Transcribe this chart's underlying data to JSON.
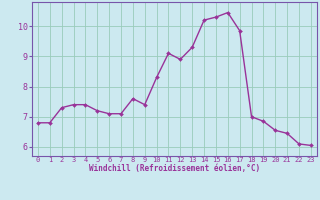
{
  "x": [
    0,
    1,
    2,
    3,
    4,
    5,
    6,
    7,
    8,
    9,
    10,
    11,
    12,
    13,
    14,
    15,
    16,
    17,
    18,
    19,
    20,
    21,
    22,
    23
  ],
  "y": [
    6.8,
    6.8,
    7.3,
    7.4,
    7.4,
    7.2,
    7.1,
    7.1,
    7.6,
    7.4,
    8.3,
    9.1,
    8.9,
    9.3,
    10.2,
    10.3,
    10.45,
    9.85,
    7.0,
    6.85,
    6.55,
    6.45,
    6.1,
    6.05
  ],
  "line_color": "#993399",
  "marker": "D",
  "markersize": 2.0,
  "linewidth": 1.0,
  "bg_color": "#cce9f0",
  "grid_color": "#99ccbb",
  "xlabel": "Windchill (Refroidissement éolien,°C)",
  "xlabel_color": "#993399",
  "tick_color": "#993399",
  "spine_color": "#7755aa",
  "xlim": [
    -0.5,
    23.5
  ],
  "ylim": [
    5.7,
    10.8
  ],
  "yticks": [
    6,
    7,
    8,
    9,
    10
  ],
  "xticks": [
    0,
    1,
    2,
    3,
    4,
    5,
    6,
    7,
    8,
    9,
    10,
    11,
    12,
    13,
    14,
    15,
    16,
    17,
    18,
    19,
    20,
    21,
    22,
    23
  ],
  "tick_fontsize": 5.0,
  "ytick_fontsize": 6.0,
  "xlabel_fontsize": 5.5
}
